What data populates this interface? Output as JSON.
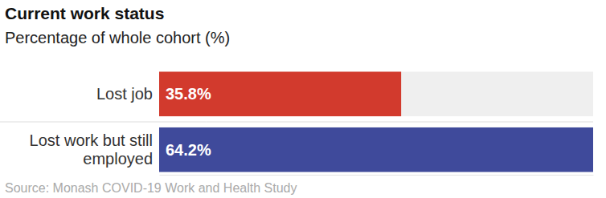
{
  "chart_data": {
    "type": "bar",
    "orientation": "horizontal",
    "title": "Current work status",
    "subtitle": "Percentage of whole cohort (%)",
    "source": "Source: Monash COVID-19 Work and Health Study",
    "categories": [
      "Lost job",
      "Lost work but still employed"
    ],
    "values": [
      35.8,
      64.2
    ],
    "value_labels": [
      "35.8%",
      "64.2%"
    ],
    "colors": [
      "#d23a2d",
      "#3f4a9b"
    ],
    "xlim": [
      0,
      64.2
    ],
    "data_labels": true,
    "tick_labels": false,
    "grid": false
  }
}
